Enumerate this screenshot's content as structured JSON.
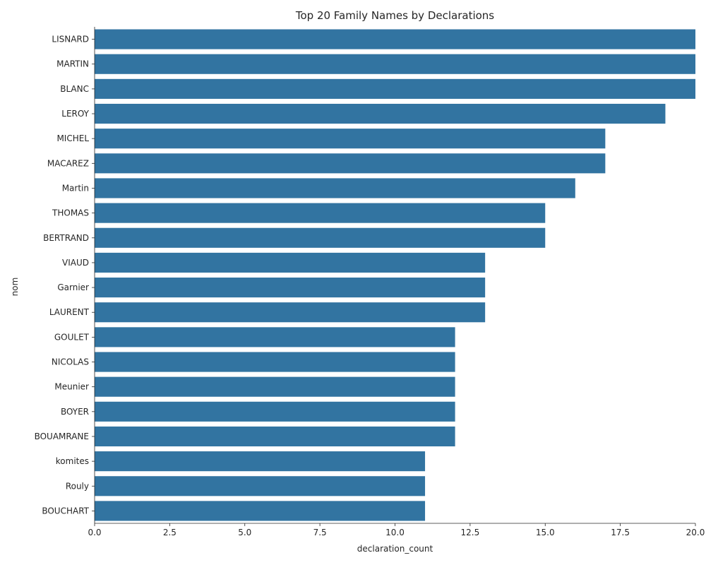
{
  "chart_data": {
    "type": "bar",
    "orientation": "horizontal",
    "title": "Top 20 Family Names by Declarations",
    "xlabel": "declaration_count",
    "ylabel": "nom",
    "xlim": [
      0,
      20
    ],
    "x_ticks": [
      "0.0",
      "2.5",
      "5.0",
      "7.5",
      "10.0",
      "12.5",
      "15.0",
      "17.5",
      "20.0"
    ],
    "grid": false,
    "legend": "none",
    "bar_color": "#3274a1",
    "categories": [
      "LISNARD",
      "MARTIN",
      "BLANC",
      "LEROY",
      "MICHEL",
      "MACAREZ",
      "Martin",
      "THOMAS",
      "BERTRAND",
      "VIAUD",
      "Garnier",
      "LAURENT",
      "GOULET",
      "NICOLAS",
      "Meunier",
      "BOYER",
      "BOUAMRANE",
      "komites",
      "Rouly",
      "BOUCHART"
    ],
    "values": [
      20,
      20,
      20,
      19,
      17,
      17,
      16,
      15,
      15,
      13,
      13,
      13,
      12,
      12,
      12,
      12,
      12,
      11,
      11,
      11
    ]
  }
}
